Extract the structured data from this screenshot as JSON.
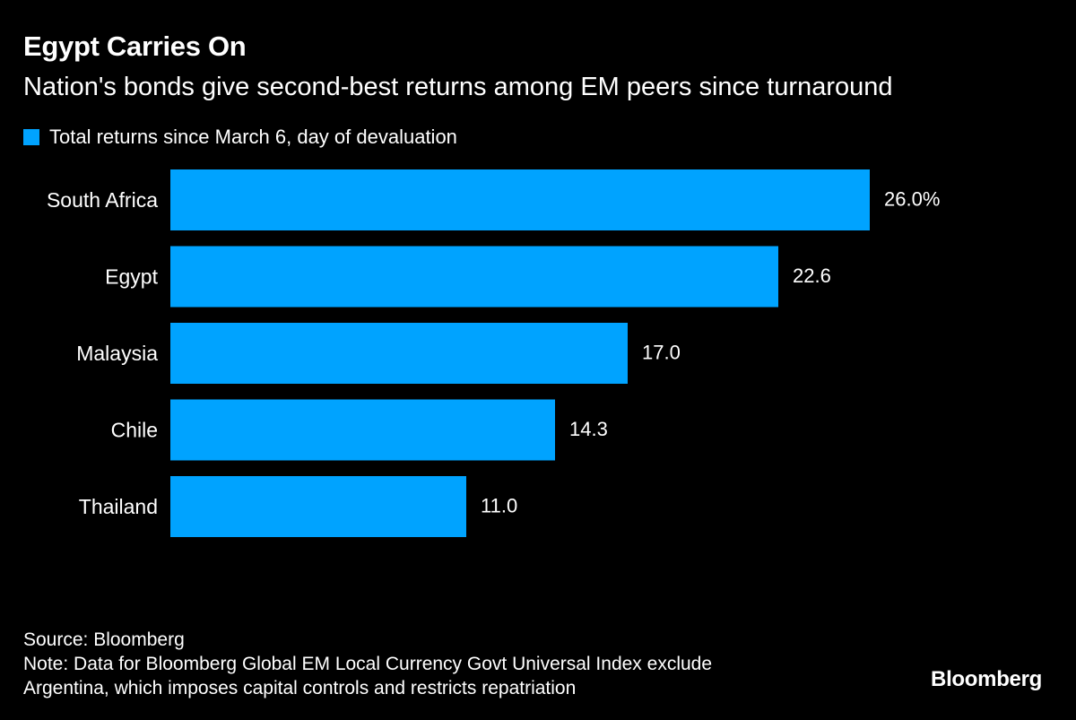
{
  "colors": {
    "background": "#000000",
    "bar": "#00a3ff",
    "text": "#ffffff"
  },
  "chart_data": {
    "type": "bar",
    "orientation": "horizontal",
    "title": "Egypt Carries On",
    "subtitle": "Nation's bonds give second-best returns among EM peers since turnaround",
    "legend": [
      "Total returns since March 6, day of devaluation"
    ],
    "legend_placement": "top-left",
    "categories": [
      "South Africa",
      "Egypt",
      "Malaysia",
      "Chile",
      "Thailand"
    ],
    "series": [
      {
        "name": "Total returns since March 6, day of devaluation",
        "values": [
          26.0,
          22.6,
          17.0,
          14.3,
          11.0
        ]
      }
    ],
    "data_labels": [
      "26.0%",
      "22.6",
      "17.0",
      "14.3",
      "11.0"
    ],
    "xlim": [
      0,
      26.0
    ],
    "grid": false
  },
  "footer": {
    "source": "Source: Bloomberg",
    "note_line1": "Note: Data for Bloomberg Global EM Local Currency Govt Universal Index exclude",
    "note_line2": "Argentina, which imposes capital controls and restricts repatriation"
  },
  "brand": "Bloomberg"
}
